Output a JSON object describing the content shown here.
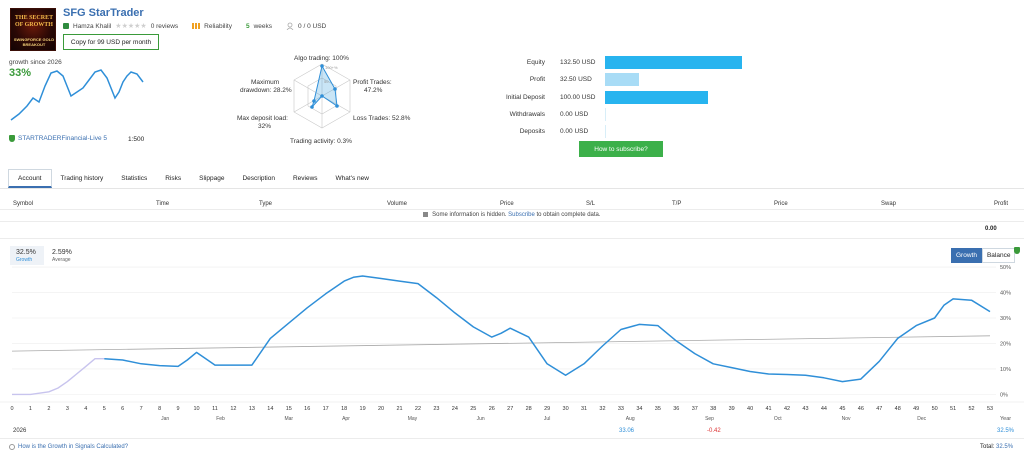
{
  "header": {
    "avatar_text_top": "THE SECRET OF GROWTH",
    "avatar_text_bottom": "SWINGFORCE GOLD BREAKOUT",
    "title": "SFG StarTrader",
    "author": "Hamza Khalil",
    "reviews": "0 reviews",
    "reliability": "Reliability",
    "weeks_num": "5",
    "weeks_label": "weeks",
    "subscribers": "0 / 0 USD",
    "copy_button": "Copy for 99 USD per month"
  },
  "summary": {
    "growth_label": "growth since 2026",
    "growth_value": "33%",
    "broker": "STARTRADERFinancial-Live 5",
    "leverage": "1:500"
  },
  "radar": {
    "algo": "Algo trading: 100%",
    "profit_trades_1": "Profit Trades:",
    "profit_trades_2": "47.2%",
    "loss_trades": "Loss Trades: 52.8%",
    "activity": "Trading activity: 0.3%",
    "deposit_load_1": "Max deposit load:",
    "deposit_load_2": "32%",
    "drawdown_1": "Maximum",
    "drawdown_2": "drawdown: 28.2%",
    "tick_100": "100+%",
    "tick_50": "50"
  },
  "financials": {
    "rows": [
      {
        "label": "Equity",
        "value": "132.50 USD",
        "fraction": 1.0,
        "color": "#28b4ef"
      },
      {
        "label": "Profit",
        "value": "32.50 USD",
        "fraction": 0.245,
        "color": "#a8dcf6"
      },
      {
        "label": "Initial Deposit",
        "value": "100.00 USD",
        "fraction": 0.755,
        "color": "#28b4ef"
      },
      {
        "label": "Withdrawals",
        "value": "0.00 USD",
        "fraction": 0,
        "color": "#28b4ef"
      },
      {
        "label": "Deposits",
        "value": "0.00 USD",
        "fraction": 0,
        "color": "#28b4ef"
      }
    ],
    "subscribe_button": "How to subscribe?"
  },
  "tabs": [
    "Account",
    "Trading history",
    "Statistics",
    "Risks",
    "Slippage",
    "Description",
    "Reviews",
    "What's new"
  ],
  "table": {
    "headers": [
      "Symbol",
      "Time",
      "Type",
      "Volume",
      "Price",
      "S/L",
      "T/P",
      "Price",
      "Swap",
      "Profit"
    ],
    "hidden_text_1": "Some information is hidden.",
    "hidden_link": "Subscribe",
    "hidden_text_2": "to obtain complete data.",
    "profit_total": "0.00"
  },
  "growth_panel": {
    "growth_value": "32.5%",
    "growth_label": "Growth",
    "average_value": "2.59%",
    "average_label": "Average",
    "btn_growth": "Growth",
    "btn_balance": "Balance",
    "year": "2026",
    "year_label": "Year",
    "aug_value": "33.06",
    "sep_value": "-0.42",
    "year_total": "32.5%",
    "footer_question": "How is the Growth in Signals Calculated?",
    "total_label": "Total:",
    "total_value": "32.5%"
  },
  "chart_data": {
    "type": "line",
    "x_ticks": [
      "0",
      "1",
      "2",
      "3",
      "4",
      "5",
      "6",
      "7",
      "8",
      "9",
      "10",
      "11",
      "12",
      "13",
      "14",
      "15",
      "16",
      "17",
      "18",
      "19",
      "20",
      "21",
      "22",
      "23",
      "24",
      "25",
      "26",
      "27",
      "28",
      "29",
      "30",
      "31",
      "32",
      "33",
      "34",
      "35",
      "36",
      "37",
      "38",
      "39",
      "40",
      "41",
      "42",
      "43",
      "44",
      "45",
      "46",
      "47",
      "48",
      "49",
      "50",
      "51",
      "52",
      "53"
    ],
    "months": [
      "Jan",
      "Feb",
      "Mar",
      "Apr",
      "May",
      "Jun",
      "Jul",
      "Aug",
      "Sep",
      "Oct",
      "Nov",
      "Dec"
    ],
    "y_ticks": [
      "0%",
      "10%",
      "20%",
      "30%",
      "40%",
      "50%"
    ],
    "ylim": [
      -3,
      52
    ],
    "xlim": [
      0,
      53
    ],
    "series": [
      {
        "color": "#2f8fd8",
        "x": [
          0,
          1,
          2,
          2.5,
          3,
          3.5,
          4,
          4.5,
          5,
          6,
          7,
          8,
          9,
          9.5,
          10,
          10.5,
          11,
          12,
          13,
          14,
          15,
          16,
          17,
          17.5,
          18,
          18.5,
          19,
          20,
          21,
          22,
          23,
          24,
          25,
          26,
          26.5,
          27,
          28,
          29,
          30,
          31,
          32,
          33,
          34,
          35,
          36,
          37,
          38,
          39,
          40,
          41,
          42,
          43,
          44,
          45,
          46,
          47,
          48,
          49,
          50,
          50.5,
          51,
          52,
          53
        ],
        "values": [
          0,
          0,
          1,
          2.5,
          5,
          8,
          11,
          14,
          14,
          13.5,
          12,
          11.3,
          11,
          13.5,
          16.5,
          14,
          11.5,
          11.5,
          11.5,
          22,
          28,
          34,
          39.5,
          42,
          44.5,
          46,
          46.5,
          45.5,
          44.5,
          43.5,
          38,
          32,
          26.5,
          22.5,
          24,
          26,
          22.5,
          12,
          7.5,
          12,
          19,
          25.5,
          27.5,
          27,
          21,
          16,
          12,
          10.5,
          9,
          8,
          7.8,
          7.5,
          6.5,
          5,
          6,
          13,
          22,
          27,
          30,
          35,
          37.5,
          37,
          32.5
        ]
      },
      {
        "color": "#a9a9a9",
        "x": [
          0,
          53
        ],
        "values": [
          17,
          23
        ]
      }
    ],
    "segment_ylim_light": [
      0,
      5
    ]
  }
}
